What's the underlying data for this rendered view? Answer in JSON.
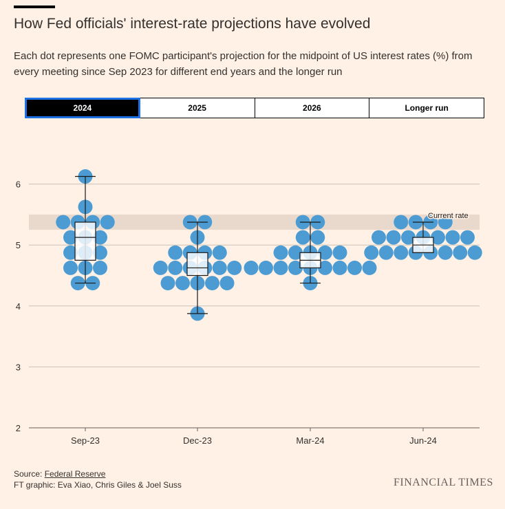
{
  "header": {
    "title": "How Fed officials' interest-rate projections have evolved",
    "subtitle": "Each dot represents one FOMC participant's projection for the midpoint of US interest rates (%) from every meeting since Sep 2023 for different end years and the longer run"
  },
  "tabs": [
    {
      "label": "2024",
      "active": true
    },
    {
      "label": "2025",
      "active": false
    },
    {
      "label": "2026",
      "active": false
    },
    {
      "label": "Longer run",
      "active": false
    }
  ],
  "colors": {
    "background": "#FFF1E5",
    "dot": "#4C9CD3",
    "band": "#E9D9CD",
    "grid": "#CCC1B7",
    "box_fill": "#FFFFFF",
    "box_stroke": "#1A1817"
  },
  "chart_data": {
    "type": "scatter",
    "subtype": "dot-plot with box-and-whisker overlay",
    "categories": [
      "Sep-23",
      "Dec-23",
      "Mar-24",
      "Jun-24"
    ],
    "y_ticks": [
      "2",
      "3",
      "4",
      "5",
      "6"
    ],
    "ylim": [
      2,
      6.375
    ],
    "grid": true,
    "band": {
      "label": "Current rate",
      "from": 5.25,
      "to": 5.5
    },
    "series": [
      {
        "category": "Sep-23",
        "levels": [
          {
            "rate": 6.125,
            "count": 1
          },
          {
            "rate": 5.625,
            "count": 1
          },
          {
            "rate": 5.375,
            "count": 4
          },
          {
            "rate": 5.125,
            "count": 3
          },
          {
            "rate": 4.875,
            "count": 3
          },
          {
            "rate": 4.625,
            "count": 3
          },
          {
            "rate": 4.375,
            "count": 2
          }
        ],
        "box": {
          "min": 4.375,
          "q1": 4.75,
          "median": 5.125,
          "q3": 5.375,
          "max": 6.125
        }
      },
      {
        "category": "Dec-23",
        "levels": [
          {
            "rate": 5.375,
            "count": 2
          },
          {
            "rate": 5.125,
            "count": 1
          },
          {
            "rate": 4.875,
            "count": 4
          },
          {
            "rate": 4.625,
            "count": 6
          },
          {
            "rate": 4.375,
            "count": 5
          },
          {
            "rate": 3.875,
            "count": 1
          }
        ],
        "box": {
          "min": 3.875,
          "q1": 4.5,
          "median": 4.625,
          "q3": 4.875,
          "max": 5.375
        }
      },
      {
        "category": "Mar-24",
        "levels": [
          {
            "rate": 5.375,
            "count": 2
          },
          {
            "rate": 5.125,
            "count": 2
          },
          {
            "rate": 4.875,
            "count": 5
          },
          {
            "rate": 4.625,
            "count": 9
          },
          {
            "rate": 4.375,
            "count": 1
          }
        ],
        "box": {
          "min": 4.375,
          "q1": 4.625,
          "median": 4.75,
          "q3": 4.875,
          "max": 5.375
        }
      },
      {
        "category": "Jun-24",
        "levels": [
          {
            "rate": 5.375,
            "count": 4
          },
          {
            "rate": 5.125,
            "count": 7
          },
          {
            "rate": 4.875,
            "count": 8
          }
        ],
        "box": {
          "min": 4.875,
          "q1": 4.875,
          "median": 5.0,
          "q3": 5.125,
          "max": 5.375
        }
      }
    ]
  },
  "footer": {
    "source_prefix": "Source: ",
    "source_link": "Federal Reserve",
    "credit": "FT graphic: Eva Xiao, Chris Giles & Joel Suss",
    "logo": "FINANCIAL TIMES"
  }
}
